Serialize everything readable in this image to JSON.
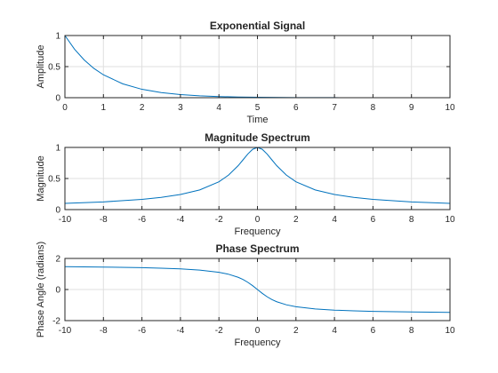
{
  "colors": {
    "series": "#0072bd",
    "axes": "#262626",
    "grid": "#dfdfdf"
  },
  "chart_data": [
    {
      "type": "line",
      "title": "Exponential Signal",
      "xlabel": "Time",
      "ylabel": "Amplitude",
      "xlim": [
        0,
        10
      ],
      "ylim": [
        0,
        1
      ],
      "xticks": [
        0,
        1,
        2,
        3,
        4,
        5,
        6,
        7,
        8,
        9,
        10
      ],
      "yticks": [
        0,
        0.5,
        1
      ],
      "grid": true,
      "series": [
        {
          "x": [
            0,
            0.25,
            0.5,
            0.75,
            1,
            1.5,
            2,
            2.5,
            3,
            3.5,
            4,
            4.5,
            5,
            6,
            7,
            8,
            9,
            10
          ],
          "y": [
            1,
            0.779,
            0.607,
            0.472,
            0.368,
            0.223,
            0.135,
            0.082,
            0.05,
            0.03,
            0.018,
            0.011,
            0.007,
            0.002,
            0.001,
            0,
            0,
            0
          ]
        }
      ]
    },
    {
      "type": "line",
      "title": "Magnitude Spectrum",
      "xlabel": "Frequency",
      "ylabel": "Magnitude",
      "xlim": [
        -10,
        10
      ],
      "ylim": [
        0,
        1
      ],
      "xticks": [
        -10,
        -8,
        -6,
        -4,
        -2,
        0,
        2,
        4,
        6,
        8,
        10
      ],
      "yticks": [
        0,
        0.5,
        1
      ],
      "grid": true,
      "series": [
        {
          "x": [
            -10,
            -8,
            -6,
            -5,
            -4,
            -3,
            -2,
            -1.5,
            -1,
            -0.75,
            -0.5,
            -0.25,
            0,
            0.25,
            0.5,
            0.75,
            1,
            1.5,
            2,
            3,
            4,
            5,
            6,
            8,
            10
          ],
          "y": [
            0.1,
            0.124,
            0.164,
            0.196,
            0.243,
            0.316,
            0.447,
            0.555,
            0.707,
            0.8,
            0.894,
            0.97,
            1,
            0.97,
            0.894,
            0.8,
            0.707,
            0.555,
            0.447,
            0.316,
            0.243,
            0.196,
            0.164,
            0.124,
            0.1
          ]
        }
      ]
    },
    {
      "type": "line",
      "title": "Phase Spectrum",
      "xlabel": "Frequency",
      "ylabel": "Phase Angle (radians)",
      "xlim": [
        -10,
        10
      ],
      "ylim": [
        -2,
        2
      ],
      "xticks": [
        -10,
        -8,
        -6,
        -4,
        -2,
        0,
        2,
        4,
        6,
        8,
        10
      ],
      "yticks": [
        -2,
        0,
        2
      ],
      "grid": true,
      "series": [
        {
          "x": [
            -10,
            -8,
            -6,
            -5,
            -4,
            -3,
            -2,
            -1.5,
            -1,
            -0.75,
            -0.5,
            -0.25,
            0,
            0.25,
            0.5,
            0.75,
            1,
            1.5,
            2,
            3,
            4,
            5,
            6,
            8,
            10
          ],
          "y": [
            1.471,
            1.446,
            1.406,
            1.373,
            1.326,
            1.249,
            1.107,
            0.983,
            0.785,
            0.644,
            0.464,
            0.245,
            0,
            -0.245,
            -0.464,
            -0.644,
            -0.785,
            -0.983,
            -1.107,
            -1.249,
            -1.326,
            -1.373,
            -1.406,
            -1.446,
            -1.471
          ]
        }
      ]
    }
  ]
}
